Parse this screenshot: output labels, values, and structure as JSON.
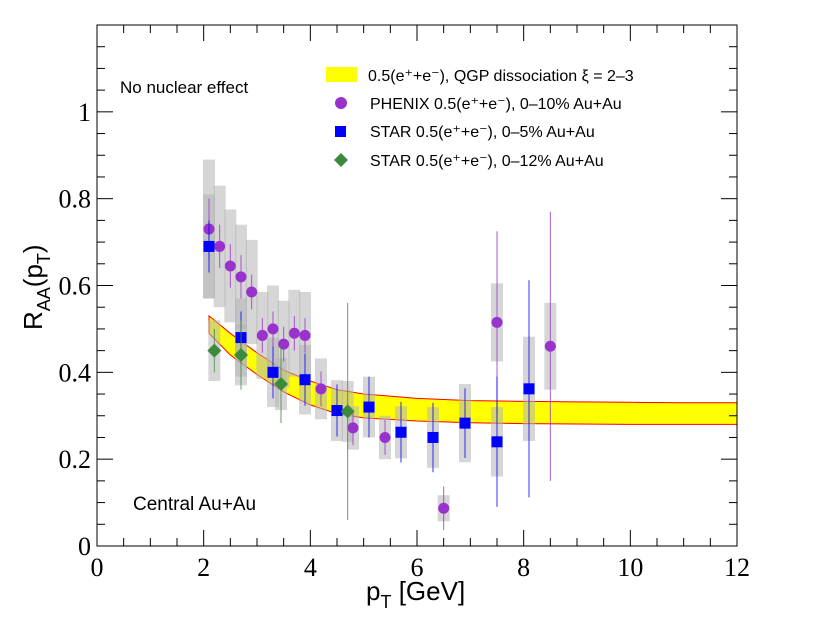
{
  "chart_data": {
    "type": "scatter",
    "xlabel_main": "p",
    "xlabel_sub": "T",
    "xlabel_rest": " [GeV]",
    "ylabel_main": "R",
    "ylabel_sub": "AA",
    "ylabel_mid": "(p",
    "ylabel_sub2": "T",
    "ylabel_end": ")",
    "xlim": [
      0,
      12
    ],
    "ylim": [
      0,
      1.2
    ],
    "x_ticks": [
      "0",
      "2",
      "4",
      "6",
      "8",
      "10",
      "12"
    ],
    "y_ticks": [
      "0",
      "0.2",
      "0.4",
      "0.6",
      "0.8",
      "1"
    ],
    "annotations": {
      "top_left": "No nuclear effect",
      "bottom_left": "Central Au+Au"
    },
    "legend": [
      {
        "label": "0.5(e⁺+e⁻), QGP dissociation ξ = 2–3",
        "color": "#ffff00",
        "marker": "band"
      },
      {
        "label": "PHENIX 0.5(e⁺+e⁻), 0–10% Au+Au",
        "color": "#9932cc",
        "marker": "circle"
      },
      {
        "label": "STAR 0.5(e⁺+e⁻), 0–5% Au+Au",
        "color": "#0000ff",
        "marker": "square"
      },
      {
        "label": "STAR 0.5(e⁺+e⁻), 0–12% Au+Au",
        "color": "#3c8a3c",
        "marker": "diamond"
      }
    ],
    "band": {
      "name": "QGP dissociation xi = 2-3",
      "x": [
        2.1,
        2.5,
        3.0,
        3.5,
        4.0,
        4.5,
        5.0,
        6.0,
        7.0,
        8.0,
        9.0,
        10.0,
        11.0,
        12.0
      ],
      "upper": [
        0.53,
        0.49,
        0.445,
        0.405,
        0.38,
        0.36,
        0.35,
        0.34,
        0.335,
        0.333,
        0.332,
        0.331,
        0.33,
        0.33
      ],
      "lower": [
        0.49,
        0.44,
        0.395,
        0.355,
        0.325,
        0.305,
        0.295,
        0.288,
        0.284,
        0.282,
        0.281,
        0.28,
        0.28,
        0.28
      ]
    },
    "series": [
      {
        "name": "PHENIX 0-10% Au+Au",
        "marker": "circle",
        "color": "#9932cc",
        "points": [
          {
            "x": 2.1,
            "y": 0.73,
            "stat": 0.07,
            "sys": 0.16
          },
          {
            "x": 2.3,
            "y": 0.69,
            "stat": 0.05,
            "sys": 0.14
          },
          {
            "x": 2.5,
            "y": 0.645,
            "stat": 0.05,
            "sys": 0.13
          },
          {
            "x": 2.7,
            "y": 0.62,
            "stat": 0.05,
            "sys": 0.12
          },
          {
            "x": 2.9,
            "y": 0.585,
            "stat": 0.04,
            "sys": 0.12
          },
          {
            "x": 3.1,
            "y": 0.485,
            "stat": 0.04,
            "sys": 0.1
          },
          {
            "x": 3.3,
            "y": 0.5,
            "stat": 0.04,
            "sys": 0.1
          },
          {
            "x": 3.5,
            "y": 0.465,
            "stat": 0.04,
            "sys": 0.1
          },
          {
            "x": 3.7,
            "y": 0.49,
            "stat": 0.04,
            "sys": 0.1
          },
          {
            "x": 3.9,
            "y": 0.485,
            "stat": 0.04,
            "sys": 0.1
          },
          {
            "x": 4.2,
            "y": 0.362,
            "stat": 0.04,
            "sys": 0.07
          },
          {
            "x": 4.8,
            "y": 0.272,
            "stat": 0.04,
            "sys": 0.05
          },
          {
            "x": 5.4,
            "y": 0.25,
            "stat": 0.04,
            "sys": 0.05
          },
          {
            "x": 6.5,
            "y": 0.087,
            "stat": 0.05,
            "sys": 0.03
          },
          {
            "x": 7.5,
            "y": 0.515,
            "stat": 0.21,
            "sys": 0.09
          },
          {
            "x": 8.5,
            "y": 0.46,
            "stat": 0.31,
            "sys": 0.1
          }
        ]
      },
      {
        "name": "STAR 0-5% Au+Au",
        "marker": "square",
        "color": "#0000ff",
        "points": [
          {
            "x": 2.1,
            "y": 0.69,
            "stat": 0.06,
            "sys": 0.12
          },
          {
            "x": 2.7,
            "y": 0.48,
            "stat": 0.06,
            "sys": 0.09
          },
          {
            "x": 3.3,
            "y": 0.4,
            "stat": 0.06,
            "sys": 0.08
          },
          {
            "x": 3.9,
            "y": 0.383,
            "stat": 0.06,
            "sys": 0.08
          },
          {
            "x": 4.5,
            "y": 0.312,
            "stat": 0.06,
            "sys": 0.07
          },
          {
            "x": 5.1,
            "y": 0.32,
            "stat": 0.07,
            "sys": 0.07
          },
          {
            "x": 5.7,
            "y": 0.262,
            "stat": 0.07,
            "sys": 0.06
          },
          {
            "x": 6.3,
            "y": 0.25,
            "stat": 0.08,
            "sys": 0.07
          },
          {
            "x": 6.9,
            "y": 0.283,
            "stat": 0.08,
            "sys": 0.09
          },
          {
            "x": 7.5,
            "y": 0.24,
            "stat": 0.15,
            "sys": 0.08
          },
          {
            "x": 8.1,
            "y": 0.362,
            "stat": 0.25,
            "sys": 0.12
          }
        ]
      },
      {
        "name": "STAR 0-12% Au+Au",
        "marker": "diamond",
        "color": "#3c8a3c",
        "points": [
          {
            "x": 2.2,
            "y": 0.45,
            "stat": 0.05,
            "sys": 0.07
          },
          {
            "x": 2.7,
            "y": 0.44,
            "stat": 0.08,
            "sys": 0.07
          },
          {
            "x": 3.45,
            "y": 0.373,
            "stat": 0.09,
            "sys": 0.06
          },
          {
            "x": 4.7,
            "y": 0.31,
            "stat": 0.25,
            "sys": 0.07
          }
        ]
      }
    ]
  }
}
